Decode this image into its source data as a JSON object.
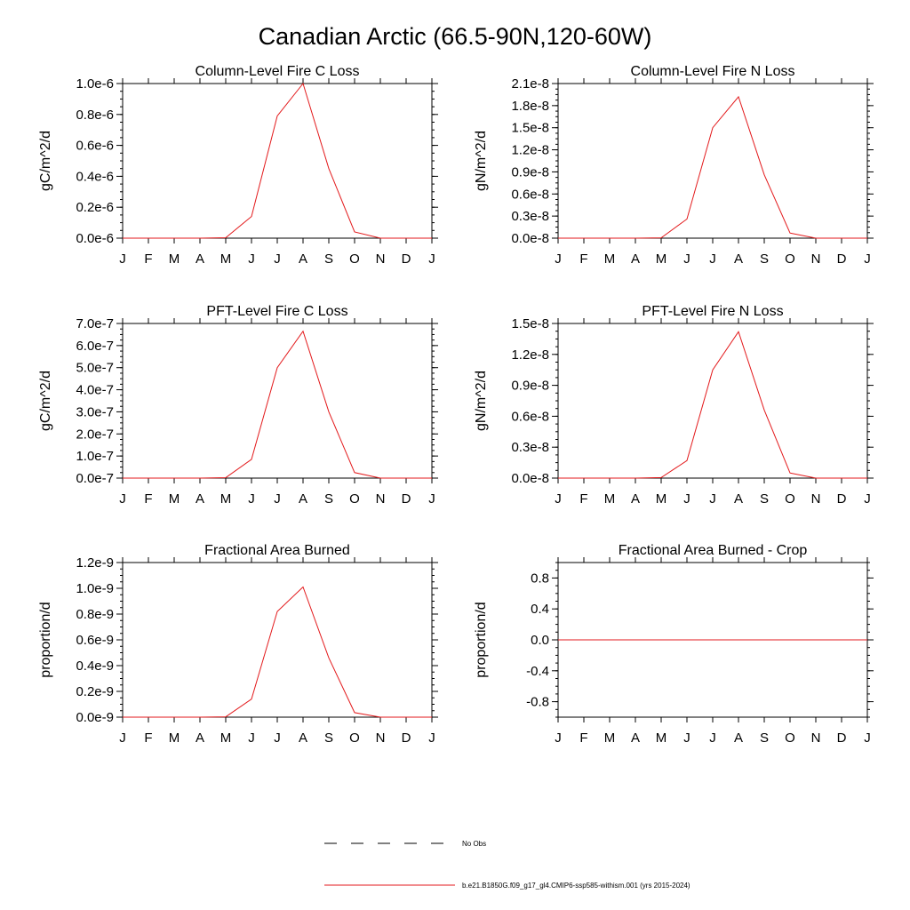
{
  "figure": {
    "title": "Canadian Arctic (66.5-90N,120-60W)",
    "series_color": "#e31a1c",
    "legend": {
      "obs_label": "No Obs",
      "model_label": "b.e21.B1850G.f09_g17_gl4.CMIP6-ssp585-withism.001 (yrs 2015-2024)"
    }
  },
  "chart_data": [
    {
      "type": "line",
      "title": "Column-Level Fire C Loss",
      "ylabel": "gC/m^2/d",
      "categories": [
        "J",
        "F",
        "M",
        "A",
        "M",
        "J",
        "J",
        "A",
        "S",
        "O",
        "N",
        "D",
        "J"
      ],
      "ylim": [
        0,
        1.0
      ],
      "yticks": [
        0,
        0.2,
        0.4,
        0.6,
        0.8,
        1.0
      ],
      "ytick_labels": [
        "0.0e-6",
        "0.2e-6",
        "0.4e-6",
        "0.6e-6",
        "0.8e-6",
        "1.0e-6"
      ],
      "series": [
        {
          "values": [
            0,
            0,
            0,
            0,
            0.003,
            0.14,
            0.79,
            1.0,
            0.45,
            0.04,
            0,
            0,
            0
          ]
        }
      ]
    },
    {
      "type": "line",
      "title": "Column-Level Fire N Loss",
      "ylabel": "gN/m^2/d",
      "categories": [
        "J",
        "F",
        "M",
        "A",
        "M",
        "J",
        "J",
        "A",
        "S",
        "O",
        "N",
        "D",
        "J"
      ],
      "ylim": [
        0,
        2.1
      ],
      "yticks": [
        0,
        0.3,
        0.6,
        0.9,
        1.2,
        1.5,
        1.8,
        2.1
      ],
      "ytick_labels": [
        "0.0e-8",
        "0.3e-8",
        "0.6e-8",
        "0.9e-8",
        "1.2e-8",
        "1.5e-8",
        "1.8e-8",
        "2.1e-8"
      ],
      "series": [
        {
          "values": [
            0,
            0,
            0,
            0,
            0.005,
            0.26,
            1.5,
            1.92,
            0.86,
            0.07,
            0,
            0,
            0
          ]
        }
      ]
    },
    {
      "type": "line",
      "title": "PFT-Level Fire C Loss",
      "ylabel": "gC/m^2/d",
      "categories": [
        "J",
        "F",
        "M",
        "A",
        "M",
        "J",
        "J",
        "A",
        "S",
        "O",
        "N",
        "D",
        "J"
      ],
      "ylim": [
        0,
        7.0
      ],
      "yticks": [
        0,
        1,
        2,
        3,
        4,
        5,
        6,
        7
      ],
      "ytick_labels": [
        "0.0e-7",
        "1.0e-7",
        "2.0e-7",
        "3.0e-7",
        "4.0e-7",
        "5.0e-7",
        "6.0e-7",
        "7.0e-7"
      ],
      "series": [
        {
          "values": [
            0,
            0,
            0,
            0,
            0.02,
            0.85,
            5.0,
            6.65,
            3.0,
            0.25,
            0,
            0,
            0
          ]
        }
      ]
    },
    {
      "type": "line",
      "title": "PFT-Level Fire N Loss",
      "ylabel": "gN/m^2/d",
      "categories": [
        "J",
        "F",
        "M",
        "A",
        "M",
        "J",
        "J",
        "A",
        "S",
        "O",
        "N",
        "D",
        "J"
      ],
      "ylim": [
        0,
        1.5
      ],
      "yticks": [
        0,
        0.3,
        0.6,
        0.9,
        1.2,
        1.5
      ],
      "ytick_labels": [
        "0.0e-8",
        "0.3e-8",
        "0.6e-8",
        "0.9e-8",
        "1.2e-8",
        "1.5e-8"
      ],
      "series": [
        {
          "values": [
            0,
            0,
            0,
            0,
            0.005,
            0.17,
            1.05,
            1.42,
            0.66,
            0.05,
            0,
            0,
            0
          ]
        }
      ]
    },
    {
      "type": "line",
      "title": "Fractional Area Burned",
      "ylabel": "proportion/d",
      "categories": [
        "J",
        "F",
        "M",
        "A",
        "M",
        "J",
        "J",
        "A",
        "S",
        "O",
        "N",
        "D",
        "J"
      ],
      "ylim": [
        0,
        1.2
      ],
      "yticks": [
        0,
        0.2,
        0.4,
        0.6,
        0.8,
        1.0,
        1.2
      ],
      "ytick_labels": [
        "0.0e-9",
        "0.2e-9",
        "0.4e-9",
        "0.6e-9",
        "0.8e-9",
        "1.0e-9",
        "1.2e-9"
      ],
      "series": [
        {
          "values": [
            0,
            0,
            0,
            0,
            0.003,
            0.14,
            0.82,
            1.01,
            0.46,
            0.035,
            0,
            0,
            0
          ]
        }
      ]
    },
    {
      "type": "line",
      "title": "Fractional Area Burned - Crop",
      "ylabel": "proportion/d",
      "categories": [
        "J",
        "F",
        "M",
        "A",
        "M",
        "J",
        "J",
        "A",
        "S",
        "O",
        "N",
        "D",
        "J"
      ],
      "ylim": [
        -1.0,
        1.0
      ],
      "yticks": [
        -0.8,
        -0.4,
        0.0,
        0.4,
        0.8
      ],
      "ytick_labels": [
        "-0.8",
        "-0.4",
        "0.0",
        "0.4",
        "0.8"
      ],
      "series": [
        {
          "values": [
            0,
            0,
            0,
            0,
            0,
            0,
            0,
            0,
            0,
            0,
            0,
            0,
            0
          ]
        }
      ]
    }
  ]
}
